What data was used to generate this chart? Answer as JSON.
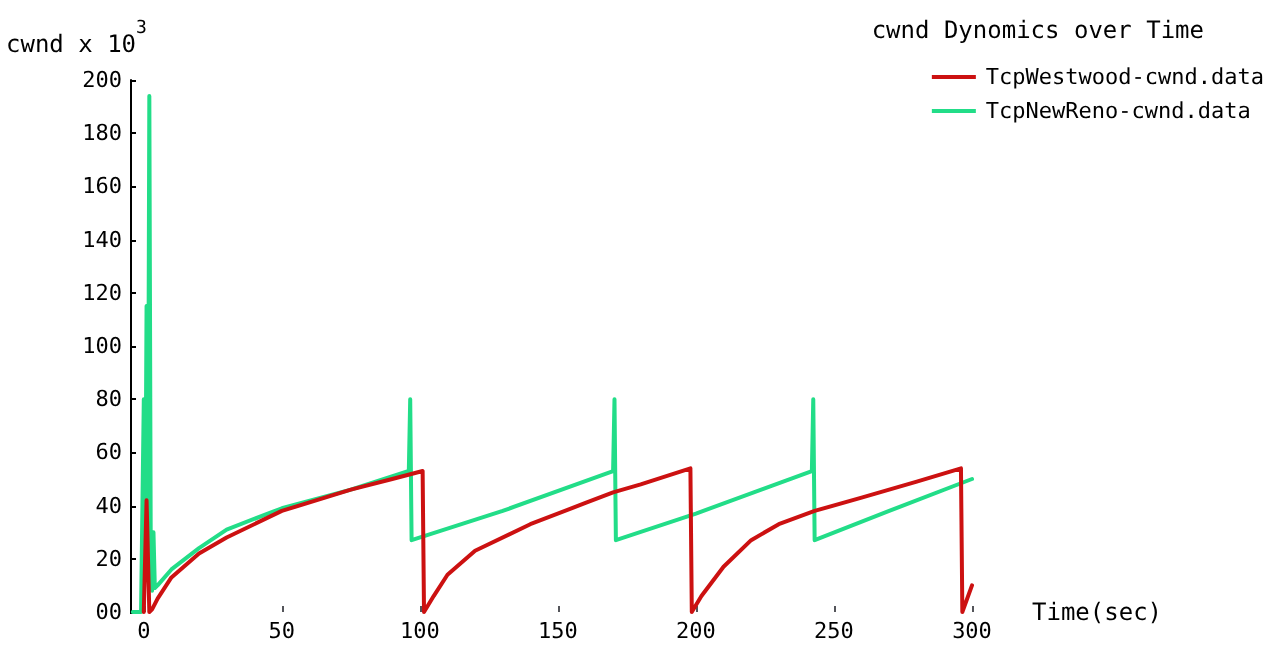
{
  "chart_data": {
    "type": "line",
    "title": "cwnd Dynomics over Time",
    "xlabel": "Time(sec)",
    "ylabel": "cwnd x 10$^{3}$",
    "xlim": [
      -5,
      300
    ],
    "xticks": [
      0,
      50,
      100,
      150,
      200,
      250,
      300
    ],
    "ylim": [
      0,
      200
    ],
    "yticks": [
      {
        "value": 0,
        "label": "00"
      },
      20,
      40,
      60,
      80,
      100,
      120,
      140,
      160,
      180,
      200
    ],
    "grid": false,
    "legend": "top right",
    "marker": "none",
    "line_style": "solid",
    "series": [
      {
        "name": "TcpWestwood-cwnd.data",
        "color": "#cc1111",
        "x": [
          0,
          1,
          1.5,
          2,
          3,
          5,
          10,
          20,
          30,
          50,
          75,
          90,
          101,
          101.5,
          105,
          110,
          120,
          140,
          160,
          170,
          180,
          198,
          198.5,
          202,
          210,
          220,
          230,
          243,
          260,
          280,
          296,
          296.5,
          300
        ],
        "values": [
          0,
          42,
          42,
          0,
          1,
          5,
          13,
          22,
          28,
          38,
          46,
          50,
          53,
          0,
          6,
          14,
          23,
          33,
          41,
          45,
          48,
          54,
          0,
          6,
          17,
          27,
          33,
          38,
          43,
          49,
          54,
          0,
          10
        ]
      },
      {
        "name": "TcpNewReno-cwnd.data",
        "color": "#22dd88",
        "x": [
          -4,
          -1,
          0,
          0.5,
          1,
          1.5,
          2,
          2.5,
          3,
          3.5,
          4,
          5,
          10,
          20,
          30,
          50,
          75,
          96,
          96.5,
          97,
          130,
          170,
          170.5,
          171,
          200,
          242,
          242.5,
          243,
          270,
          300
        ],
        "values": [
          0,
          0,
          80,
          20,
          115,
          30,
          194,
          28,
          8,
          30,
          9,
          10,
          16,
          24,
          31,
          39,
          46,
          53,
          80,
          27,
          38,
          53,
          80,
          27,
          37,
          53,
          80,
          27,
          38,
          50
        ]
      }
    ]
  }
}
